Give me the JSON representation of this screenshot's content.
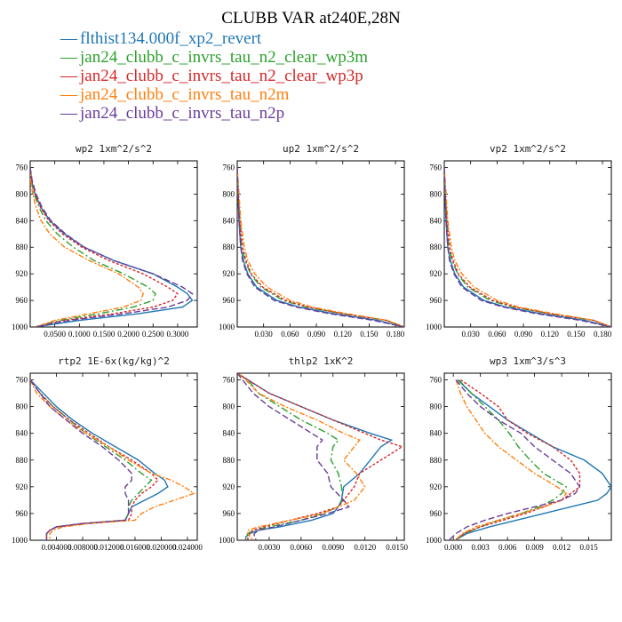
{
  "title": "CLUBB VAR at240E,28N",
  "legend": [
    {
      "label": "flthist134.000f_xp2_revert",
      "color": "#1f77b4",
      "dash": ""
    },
    {
      "label": "jan24_clubb_c_invrs_tau_n2_clear_wp3m",
      "color": "#2ca02c",
      "dash": "8,3,2,3"
    },
    {
      "label": "jan24_clubb_c_invrs_tau_n2_clear_wp3p",
      "color": "#d62728",
      "dash": "3,2"
    },
    {
      "label": "jan24_clubb_c_invrs_tau_n2m",
      "color": "#ff7f0e",
      "dash": "6,2,2,2"
    },
    {
      "label": "jan24_clubb_c_invrs_tau_n2p",
      "color": "#6a3d9a",
      "dash": "7,3"
    }
  ],
  "chart_data": [
    {
      "type": "line",
      "title": "wp2  1xm^2/s^2",
      "ylim": [
        1000,
        750
      ],
      "yticks": [
        "760",
        "800",
        "840",
        "880",
        "920",
        "960",
        "1000"
      ],
      "xlim": [
        0.0,
        0.34
      ],
      "xticks": [
        0.05,
        0.1,
        0.15,
        0.2,
        0.25,
        0.3
      ],
      "xtick_labels": [
        "0.0500",
        "0.1000",
        "0.1500",
        "0.2000",
        "0.2500",
        "0.3000"
      ],
      "y": [
        760,
        780,
        800,
        820,
        840,
        860,
        880,
        900,
        920,
        940,
        950,
        960,
        970,
        980,
        990,
        1000
      ],
      "series": [
        {
          "values": [
            0.0,
            0.003,
            0.01,
            0.022,
            0.04,
            0.07,
            0.11,
            0.17,
            0.25,
            0.3,
            0.32,
            0.33,
            0.31,
            0.22,
            0.1,
            0.01
          ]
        },
        {
          "values": [
            0.0,
            0.002,
            0.008,
            0.018,
            0.032,
            0.055,
            0.088,
            0.13,
            0.19,
            0.24,
            0.255,
            0.25,
            0.21,
            0.14,
            0.06,
            0.01
          ]
        },
        {
          "values": [
            0.0,
            0.003,
            0.01,
            0.021,
            0.038,
            0.066,
            0.105,
            0.16,
            0.23,
            0.28,
            0.3,
            0.29,
            0.25,
            0.17,
            0.07,
            0.01
          ]
        },
        {
          "values": [
            0.0,
            0.001,
            0.005,
            0.012,
            0.022,
            0.04,
            0.07,
            0.12,
            0.18,
            0.22,
            0.23,
            0.225,
            0.19,
            0.12,
            0.05,
            0.01
          ]
        },
        {
          "values": [
            0.0,
            0.004,
            0.012,
            0.024,
            0.042,
            0.072,
            0.11,
            0.17,
            0.25,
            0.31,
            0.33,
            0.32,
            0.28,
            0.19,
            0.08,
            0.01
          ]
        }
      ]
    },
    {
      "type": "line",
      "title": "up2  1xm^2/s^2",
      "ylim": [
        1000,
        750
      ],
      "yticks": [
        "760",
        "800",
        "840",
        "880",
        "920",
        "960",
        "1000"
      ],
      "xlim": [
        0.0,
        0.19
      ],
      "xticks": [
        0.03,
        0.06,
        0.09,
        0.12,
        0.15,
        0.18
      ],
      "xtick_labels": [
        "0.030",
        "0.060",
        "0.090",
        "0.120",
        "0.150",
        "0.180"
      ],
      "y": [
        760,
        800,
        840,
        880,
        900,
        920,
        940,
        960,
        970,
        980,
        990,
        1000
      ],
      "series": [
        {
          "values": [
            0.0,
            0.001,
            0.002,
            0.004,
            0.007,
            0.012,
            0.022,
            0.045,
            0.07,
            0.11,
            0.16,
            0.19
          ]
        },
        {
          "values": [
            0.0,
            0.001,
            0.003,
            0.005,
            0.009,
            0.015,
            0.027,
            0.052,
            0.078,
            0.12,
            0.17,
            0.19
          ]
        },
        {
          "values": [
            0.0,
            0.001,
            0.003,
            0.006,
            0.01,
            0.016,
            0.029,
            0.055,
            0.08,
            0.12,
            0.17,
            0.19
          ]
        },
        {
          "values": [
            0.0,
            0.002,
            0.004,
            0.008,
            0.012,
            0.02,
            0.034,
            0.06,
            0.085,
            0.125,
            0.17,
            0.19
          ]
        },
        {
          "values": [
            0.0,
            0.001,
            0.002,
            0.004,
            0.006,
            0.011,
            0.02,
            0.042,
            0.067,
            0.105,
            0.155,
            0.19
          ]
        }
      ]
    },
    {
      "type": "line",
      "title": "vp2  1xm^2/s^2",
      "ylim": [
        1000,
        750
      ],
      "yticks": [
        "760",
        "800",
        "840",
        "880",
        "920",
        "960",
        "1000"
      ],
      "xlim": [
        0.0,
        0.19
      ],
      "xticks": [
        0.03,
        0.06,
        0.09,
        0.12,
        0.15,
        0.18
      ],
      "xtick_labels": [
        "0.030",
        "0.060",
        "0.090",
        "0.120",
        "0.150",
        "0.180"
      ],
      "y": [
        760,
        800,
        840,
        880,
        900,
        920,
        940,
        960,
        970,
        980,
        990,
        1000
      ],
      "series": [
        {
          "values": [
            0.0,
            0.001,
            0.002,
            0.004,
            0.007,
            0.012,
            0.022,
            0.045,
            0.07,
            0.11,
            0.16,
            0.19
          ]
        },
        {
          "values": [
            0.0,
            0.001,
            0.003,
            0.005,
            0.009,
            0.015,
            0.027,
            0.052,
            0.078,
            0.12,
            0.17,
            0.19
          ]
        },
        {
          "values": [
            0.0,
            0.001,
            0.003,
            0.006,
            0.01,
            0.016,
            0.029,
            0.055,
            0.08,
            0.12,
            0.17,
            0.19
          ]
        },
        {
          "values": [
            0.0,
            0.002,
            0.004,
            0.008,
            0.012,
            0.02,
            0.034,
            0.06,
            0.085,
            0.125,
            0.17,
            0.19
          ]
        },
        {
          "values": [
            0.0,
            0.001,
            0.002,
            0.004,
            0.006,
            0.011,
            0.02,
            0.042,
            0.067,
            0.105,
            0.155,
            0.19
          ]
        }
      ]
    },
    {
      "type": "line",
      "title": "rtp2  1E-6x(kg/kg)^2",
      "ylim": [
        1000,
        750
      ],
      "yticks": [
        "760",
        "800",
        "840",
        "880",
        "920",
        "960",
        "1000"
      ],
      "xlim": [
        0.0,
        0.0255
      ],
      "xticks": [
        0.004,
        0.008,
        0.012,
        0.016,
        0.02,
        0.024
      ],
      "xtick_labels": [
        "0.004000",
        "0.008000",
        "0.012000",
        "0.016000",
        "0.020000",
        "0.024000"
      ],
      "y": [
        760,
        780,
        800,
        820,
        840,
        860,
        880,
        900,
        910,
        920,
        930,
        940,
        950,
        960,
        970,
        975,
        980,
        985,
        990,
        1000
      ],
      "series": [
        {
          "values": [
            0.0,
            0.002,
            0.004,
            0.0065,
            0.0095,
            0.013,
            0.0165,
            0.019,
            0.0205,
            0.021,
            0.0195,
            0.0175,
            0.0155,
            0.015,
            0.0145,
            0.008,
            0.004,
            0.003,
            0.0025,
            0.0025
          ]
        },
        {
          "values": [
            0.0,
            0.0015,
            0.0035,
            0.006,
            0.0085,
            0.0115,
            0.0145,
            0.017,
            0.0185,
            0.0175,
            0.0165,
            0.0155,
            0.015,
            0.015,
            0.0145,
            0.008,
            0.004,
            0.003,
            0.0025,
            0.0025
          ]
        },
        {
          "values": [
            0.0,
            0.0015,
            0.0035,
            0.006,
            0.009,
            0.012,
            0.0155,
            0.0185,
            0.0195,
            0.0185,
            0.017,
            0.016,
            0.0155,
            0.0155,
            0.015,
            0.008,
            0.004,
            0.003,
            0.0025,
            0.0025
          ]
        },
        {
          "values": [
            0.0,
            0.001,
            0.003,
            0.0055,
            0.0085,
            0.012,
            0.015,
            0.0185,
            0.0215,
            0.0235,
            0.025,
            0.022,
            0.019,
            0.017,
            0.016,
            0.009,
            0.005,
            0.0035,
            0.003,
            0.003
          ]
        },
        {
          "values": [
            0.0,
            0.0015,
            0.003,
            0.0055,
            0.008,
            0.011,
            0.0135,
            0.0155,
            0.0155,
            0.0145,
            0.0145,
            0.015,
            0.015,
            0.015,
            0.0145,
            0.008,
            0.004,
            0.003,
            0.0025,
            0.0025
          ]
        }
      ]
    },
    {
      "type": "line",
      "title": "thlp2  1xK^2",
      "ylim": [
        1000,
        750
      ],
      "yticks": [
        "760",
        "800",
        "840",
        "880",
        "920",
        "960",
        "1000"
      ],
      "xlim": [
        0.0,
        0.0157
      ],
      "xticks": [
        0.003,
        0.006,
        0.009,
        0.012,
        0.015
      ],
      "xtick_labels": [
        "0.0030",
        "0.0060",
        "0.0090",
        "0.0120",
        "0.0150"
      ],
      "y": [
        750,
        760,
        780,
        800,
        820,
        840,
        850,
        860,
        880,
        900,
        920,
        940,
        950,
        960,
        970,
        980,
        985,
        990,
        995,
        1000
      ],
      "series": [
        {
          "values": [
            0.0,
            0.001,
            0.003,
            0.006,
            0.009,
            0.0125,
            0.0145,
            0.0135,
            0.0125,
            0.0115,
            0.01,
            0.0098,
            0.0095,
            0.009,
            0.007,
            0.004,
            0.002,
            0.0012,
            0.0008,
            0.0008
          ]
        },
        {
          "values": [
            0.0,
            0.001,
            0.002,
            0.004,
            0.006,
            0.0085,
            0.0095,
            0.009,
            0.0088,
            0.0095,
            0.0098,
            0.0099,
            0.0095,
            0.008,
            0.006,
            0.003,
            0.0015,
            0.001,
            0.0008,
            0.0008
          ]
        },
        {
          "values": [
            0.0,
            0.001,
            0.003,
            0.006,
            0.009,
            0.012,
            0.0135,
            0.0155,
            0.0135,
            0.0115,
            0.011,
            0.01,
            0.0095,
            0.0075,
            0.005,
            0.0025,
            0.0015,
            0.0012,
            0.001,
            0.001
          ]
        },
        {
          "values": [
            0.0,
            0.0008,
            0.002,
            0.0045,
            0.0075,
            0.01,
            0.0115,
            0.011,
            0.01,
            0.0112,
            0.012,
            0.011,
            0.0095,
            0.008,
            0.005,
            0.002,
            0.001,
            0.001,
            0.0012,
            0.0015
          ]
        },
        {
          "values": [
            0.0,
            0.0005,
            0.0015,
            0.003,
            0.005,
            0.007,
            0.008,
            0.0075,
            0.0075,
            0.0085,
            0.0088,
            0.01,
            0.0105,
            0.0085,
            0.006,
            0.0035,
            0.002,
            0.0016,
            0.0016,
            0.0018
          ]
        }
      ]
    },
    {
      "type": "line",
      "title": "wp3  1xm^3/s^3",
      "ylim": [
        1000,
        750
      ],
      "yticks": [
        "760",
        "800",
        "840",
        "880",
        "920",
        "960",
        "1000"
      ],
      "xlim": [
        -0.001,
        0.0175
      ],
      "xticks": [
        0.0,
        0.003,
        0.006,
        0.009,
        0.012,
        0.015
      ],
      "xtick_labels": [
        "0.000",
        "0.003",
        "0.006",
        "0.009",
        "0.012",
        "0.015"
      ],
      "y": [
        760,
        780,
        800,
        820,
        840,
        860,
        880,
        900,
        920,
        930,
        940,
        950,
        960,
        970,
        980,
        990,
        1000
      ],
      "series": [
        {
          "values": [
            0.0005,
            0.002,
            0.004,
            0.006,
            0.0085,
            0.011,
            0.0145,
            0.0165,
            0.0175,
            0.017,
            0.016,
            0.013,
            0.01,
            0.007,
            0.004,
            0.0015,
            0.0002
          ]
        },
        {
          "values": [
            0.0006,
            0.002,
            0.0035,
            0.005,
            0.0062,
            0.0072,
            0.0085,
            0.01,
            0.0125,
            0.012,
            0.011,
            0.0095,
            0.0075,
            0.005,
            0.003,
            0.0012,
            0.0002
          ]
        },
        {
          "values": [
            0.0008,
            0.003,
            0.005,
            0.006,
            0.0082,
            0.011,
            0.013,
            0.014,
            0.014,
            0.013,
            0.012,
            0.01,
            0.008,
            0.0055,
            0.003,
            0.0012,
            0.0002
          ]
        },
        {
          "values": [
            0.0003,
            0.0008,
            0.0015,
            0.0025,
            0.0035,
            0.005,
            0.007,
            0.009,
            0.0115,
            0.0125,
            0.012,
            0.01,
            0.0075,
            0.005,
            0.0025,
            0.001,
            0.0002
          ]
        },
        {
          "values": [
            0.0003,
            0.0015,
            0.003,
            0.005,
            0.0075,
            0.009,
            0.011,
            0.013,
            0.014,
            0.0135,
            0.012,
            0.009,
            0.006,
            0.0035,
            0.0015,
            0.0003,
            -0.0005
          ]
        }
      ]
    }
  ]
}
